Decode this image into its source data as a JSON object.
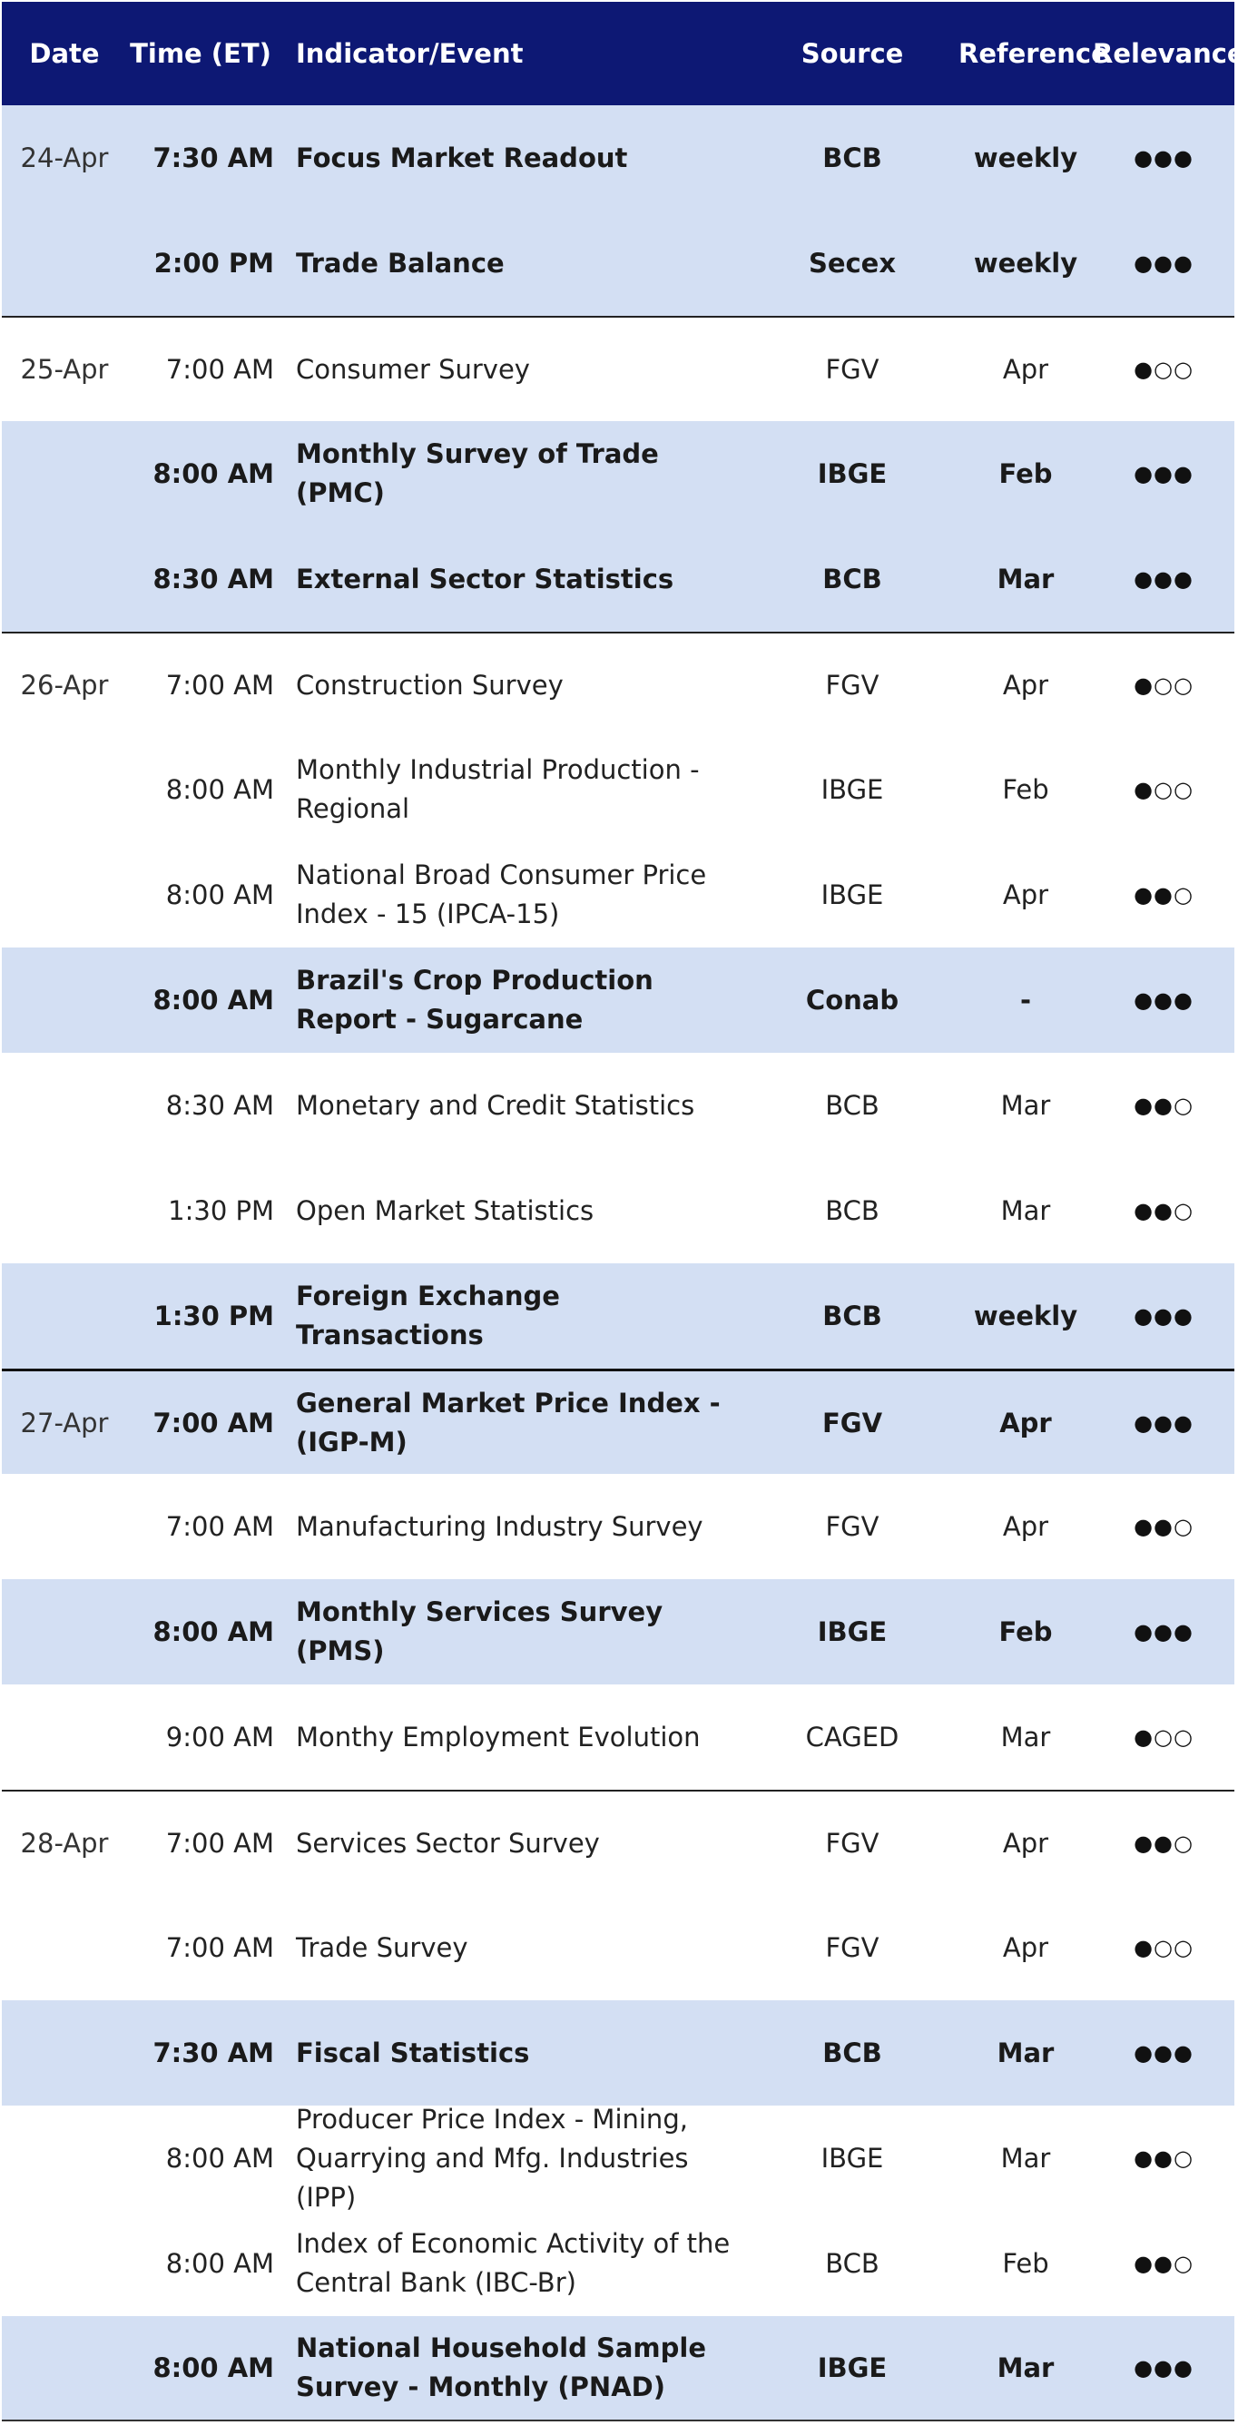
{
  "header": {
    "date": "Date",
    "time": "Time (ET)",
    "indicator": "Indicator/Event",
    "source": "Source",
    "reference": "Reference",
    "relevance": "Relevance"
  },
  "colors": {
    "header_bg": "#0d1874",
    "highlight_bg": "#d3dff3"
  },
  "rows": [
    {
      "date": "24-Apr",
      "time": "7:30 AM",
      "indicator": "Focus Market Readout",
      "source": "BCB",
      "reference": "weekly",
      "relevance": "●●●"
    },
    {
      "date": "",
      "time": "2:00 PM",
      "indicator": "Trade Balance",
      "source": "Secex",
      "reference": "weekly",
      "relevance": "●●●"
    },
    {
      "date": "25-Apr",
      "time": "7:00 AM",
      "indicator": "Consumer Survey",
      "source": "FGV",
      "reference": "Apr",
      "relevance": "●○○"
    },
    {
      "date": "",
      "time": "8:00 AM",
      "indicator": "Monthly Survey of Trade (PMC)",
      "source": "IBGE",
      "reference": "Feb",
      "relevance": "●●●"
    },
    {
      "date": "",
      "time": "8:30 AM",
      "indicator": "External Sector Statistics",
      "source": "BCB",
      "reference": "Mar",
      "relevance": "●●●"
    },
    {
      "date": "26-Apr",
      "time": "7:00 AM",
      "indicator": "Construction Survey",
      "source": "FGV",
      "reference": "Apr",
      "relevance": "●○○"
    },
    {
      "date": "",
      "time": "8:00 AM",
      "indicator": "Monthly Industrial Production - Regional",
      "source": "IBGE",
      "reference": "Feb",
      "relevance": "●○○"
    },
    {
      "date": "",
      "time": "8:00 AM",
      "indicator": "National Broad Consumer Price Index - 15 (IPCA-15)",
      "source": "IBGE",
      "reference": "Apr",
      "relevance": "●●○"
    },
    {
      "date": "",
      "time": "8:00 AM",
      "indicator": "Brazil's Crop Production Report - Sugarcane",
      "source": "Conab",
      "reference": "-",
      "relevance": "●●●"
    },
    {
      "date": "",
      "time": "8:30 AM",
      "indicator": "Monetary and Credit Statistics",
      "source": "BCB",
      "reference": "Mar",
      "relevance": "●●○"
    },
    {
      "date": "",
      "time": "1:30 PM",
      "indicator": "Open Market Statistics",
      "source": "BCB",
      "reference": "Mar",
      "relevance": "●●○"
    },
    {
      "date": "",
      "time": "1:30 PM",
      "indicator": "Foreign Exchange Transactions",
      "source": "BCB",
      "reference": "weekly",
      "relevance": "●●●"
    },
    {
      "date": "27-Apr",
      "time": "7:00 AM",
      "indicator": "General Market Price Index - (IGP-M)",
      "source": "FGV",
      "reference": "Apr",
      "relevance": "●●●"
    },
    {
      "date": "",
      "time": "7:00 AM",
      "indicator": "Manufacturing Industry Survey",
      "source": "FGV",
      "reference": "Apr",
      "relevance": "●●○"
    },
    {
      "date": "",
      "time": "8:00 AM",
      "indicator": "Monthly Services Survey (PMS)",
      "source": "IBGE",
      "reference": "Feb",
      "relevance": "●●●"
    },
    {
      "date": "",
      "time": "9:00 AM",
      "indicator": "Monthy Employment Evolution",
      "source": "CAGED",
      "reference": "Mar",
      "relevance": "●○○"
    },
    {
      "date": "28-Apr",
      "time": "7:00 AM",
      "indicator": "Services Sector Survey",
      "source": "FGV",
      "reference": "Apr",
      "relevance": "●●○"
    },
    {
      "date": "",
      "time": "7:00 AM",
      "indicator": "Trade Survey",
      "source": "FGV",
      "reference": "Apr",
      "relevance": "●○○"
    },
    {
      "date": "",
      "time": "7:30 AM",
      "indicator": "Fiscal Statistics",
      "source": "BCB",
      "reference": "Mar",
      "relevance": "●●●"
    },
    {
      "date": "",
      "time": "8:00 AM",
      "indicator": "Producer Price Index - Mining, Quarrying and Mfg. Industries (IPP)",
      "source": "IBGE",
      "reference": "Mar",
      "relevance": "●●○"
    },
    {
      "date": "",
      "time": "8:00 AM",
      "indicator": "Index of Economic Activity of the Central Bank (IBC-Br)",
      "source": "BCB",
      "reference": "Feb",
      "relevance": "●●○"
    },
    {
      "date": "",
      "time": "8:00 AM",
      "indicator": "National Household Sample Survey - Monthly (PNAD)",
      "source": "IBGE",
      "reference": "Mar",
      "relevance": "●●●"
    }
  ]
}
